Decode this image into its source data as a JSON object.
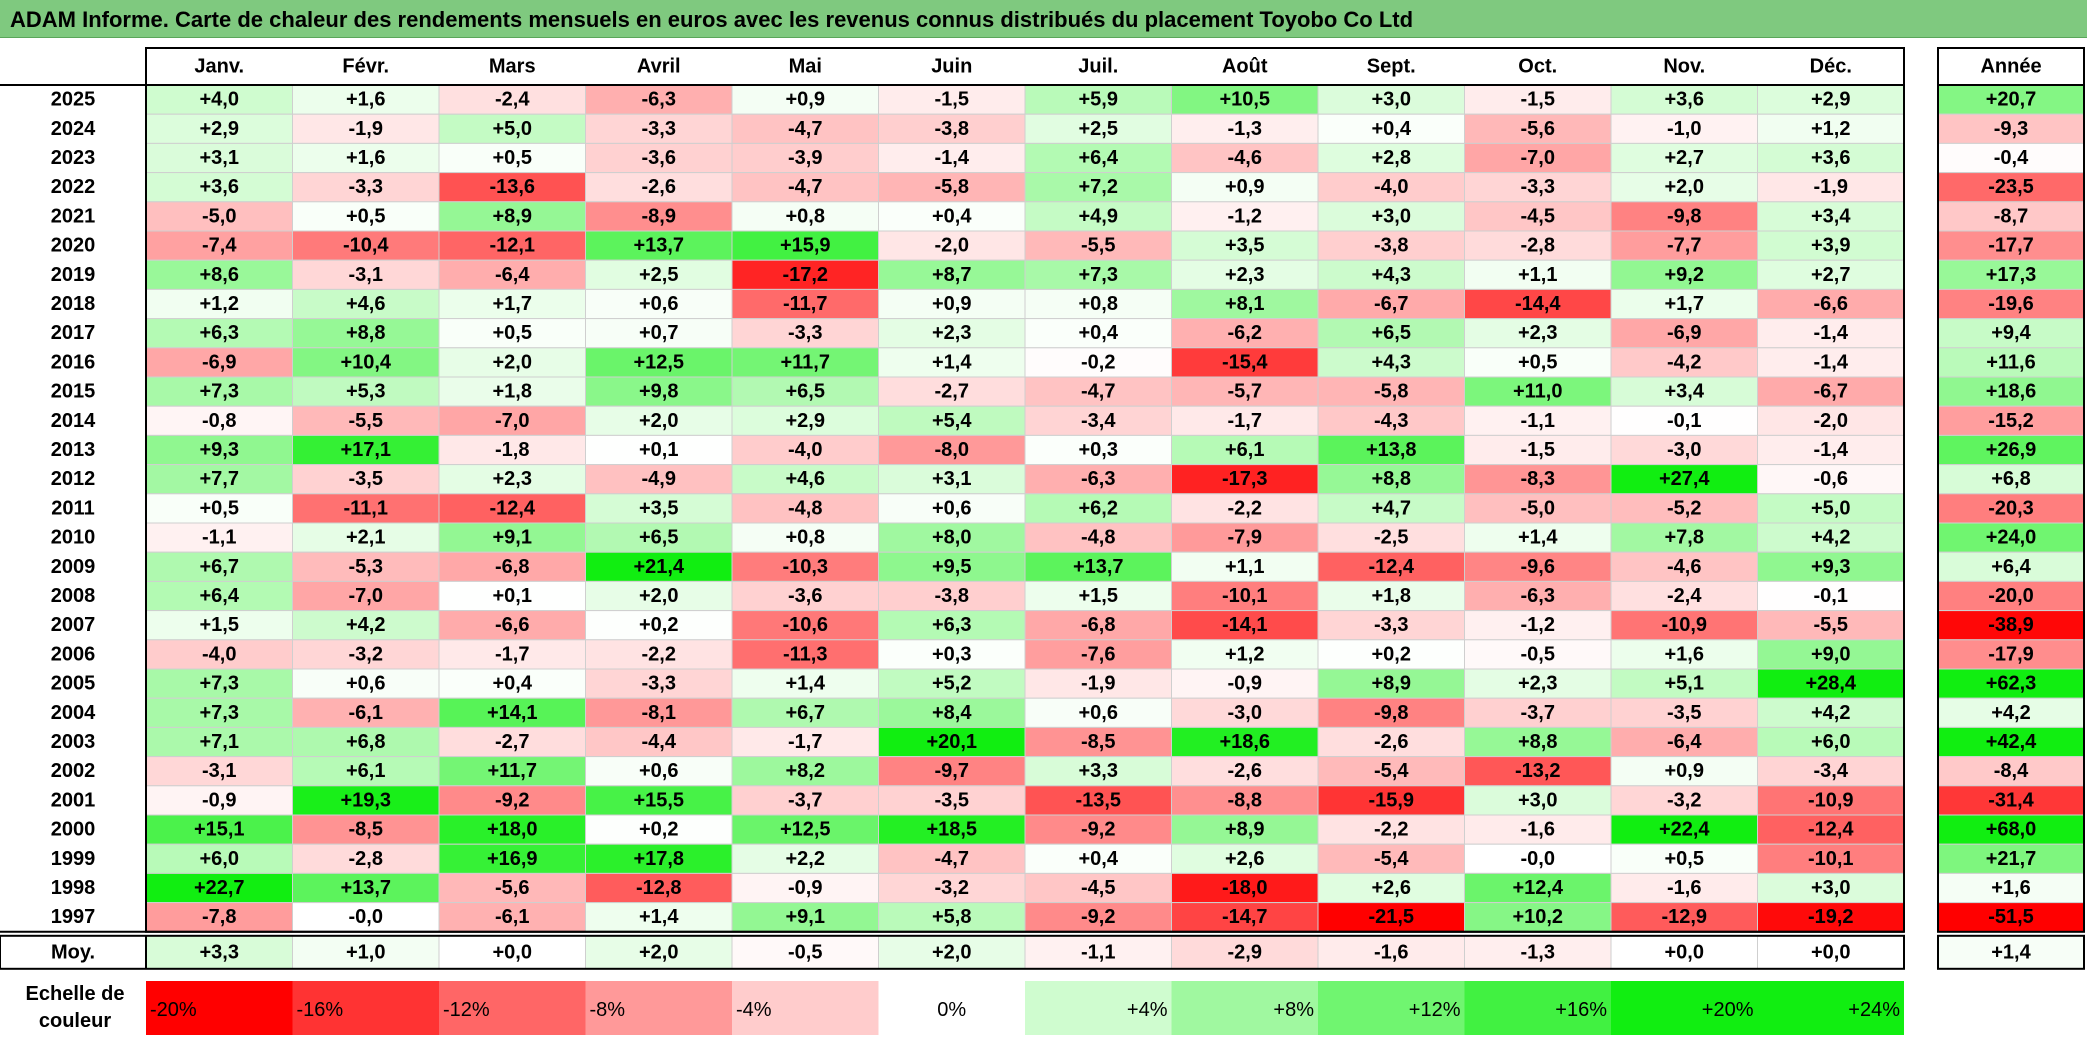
{
  "title": "ADAM Informe. Carte de chaleur des rendements mensuels en euros avec les revenus connus distribués du placement Toyobo Co Ltd",
  "colors": {
    "title_bg": "#7fc97f",
    "max_red": "#ff0000",
    "max_green": "#11ee11",
    "neutral": "#ffffff"
  },
  "chart_data": {
    "type": "heatmap",
    "columns": [
      "Janv.",
      "Févr.",
      "Mars",
      "Avril",
      "Mai",
      "Juin",
      "Juil.",
      "Août",
      "Sept.",
      "Oct.",
      "Nov.",
      "Déc."
    ],
    "year_column": "Année",
    "rows": [
      {
        "year": "2025",
        "values": [
          "+4,0",
          "+1,6",
          "-2,4",
          "-6,3",
          "+0,9",
          "-1,5",
          "+5,9",
          "+10,5",
          "+3,0",
          "-1,5",
          "+3,6",
          "+2,9"
        ],
        "annual": "+20,7"
      },
      {
        "year": "2024",
        "values": [
          "+2,9",
          "-1,9",
          "+5,0",
          "-3,3",
          "-4,7",
          "-3,8",
          "+2,5",
          "-1,3",
          "+0,4",
          "-5,6",
          "-1,0",
          "+1,2"
        ],
        "annual": "-9,3"
      },
      {
        "year": "2023",
        "values": [
          "+3,1",
          "+1,6",
          "+0,5",
          "-3,6",
          "-3,9",
          "-1,4",
          "+6,4",
          "-4,6",
          "+2,8",
          "-7,0",
          "+2,7",
          "+3,6"
        ],
        "annual": "-0,4"
      },
      {
        "year": "2022",
        "values": [
          "+3,6",
          "-3,3",
          "-13,6",
          "-2,6",
          "-4,7",
          "-5,8",
          "+7,2",
          "+0,9",
          "-4,0",
          "-3,3",
          "+2,0",
          "-1,9"
        ],
        "annual": "-23,5"
      },
      {
        "year": "2021",
        "values": [
          "-5,0",
          "+0,5",
          "+8,9",
          "-8,9",
          "+0,8",
          "+0,4",
          "+4,9",
          "-1,2",
          "+3,0",
          "-4,5",
          "-9,8",
          "+3,4"
        ],
        "annual": "-8,7"
      },
      {
        "year": "2020",
        "values": [
          "-7,4",
          "-10,4",
          "-12,1",
          "+13,7",
          "+15,9",
          "-2,0",
          "-5,5",
          "+3,5",
          "-3,8",
          "-2,8",
          "-7,7",
          "+3,9"
        ],
        "annual": "-17,7"
      },
      {
        "year": "2019",
        "values": [
          "+8,6",
          "-3,1",
          "-6,4",
          "+2,5",
          "-17,2",
          "+8,7",
          "+7,3",
          "+2,3",
          "+4,3",
          "+1,1",
          "+9,2",
          "+2,7"
        ],
        "annual": "+17,3"
      },
      {
        "year": "2018",
        "values": [
          "+1,2",
          "+4,6",
          "+1,7",
          "+0,6",
          "-11,7",
          "+0,9",
          "+0,8",
          "+8,1",
          "-6,7",
          "-14,4",
          "+1,7",
          "-6,6"
        ],
        "annual": "-19,6"
      },
      {
        "year": "2017",
        "values": [
          "+6,3",
          "+8,8",
          "+0,5",
          "+0,7",
          "-3,3",
          "+2,3",
          "+0,4",
          "-6,2",
          "+6,5",
          "+2,3",
          "-6,9",
          "-1,4"
        ],
        "annual": "+9,4"
      },
      {
        "year": "2016",
        "values": [
          "-6,9",
          "+10,4",
          "+2,0",
          "+12,5",
          "+11,7",
          "+1,4",
          "-0,2",
          "-15,4",
          "+4,3",
          "+0,5",
          "-4,2",
          "-1,4"
        ],
        "annual": "+11,6"
      },
      {
        "year": "2015",
        "values": [
          "+7,3",
          "+5,3",
          "+1,8",
          "+9,8",
          "+6,5",
          "-2,7",
          "-4,7",
          "-5,7",
          "-5,8",
          "+11,0",
          "+3,4",
          "-6,7"
        ],
        "annual": "+18,6"
      },
      {
        "year": "2014",
        "values": [
          "-0,8",
          "-5,5",
          "-7,0",
          "+2,0",
          "+2,9",
          "+5,4",
          "-3,4",
          "-1,7",
          "-4,3",
          "-1,1",
          "-0,1",
          "-2,0"
        ],
        "annual": "-15,2"
      },
      {
        "year": "2013",
        "values": [
          "+9,3",
          "+17,1",
          "-1,8",
          "+0,1",
          "-4,0",
          "-8,0",
          "+0,3",
          "+6,1",
          "+13,8",
          "-1,5",
          "-3,0",
          "-1,4"
        ],
        "annual": "+26,9"
      },
      {
        "year": "2012",
        "values": [
          "+7,7",
          "-3,5",
          "+2,3",
          "-4,9",
          "+4,6",
          "+3,1",
          "-6,3",
          "-17,3",
          "+8,8",
          "-8,3",
          "+27,4",
          "-0,6"
        ],
        "annual": "+6,8"
      },
      {
        "year": "2011",
        "values": [
          "+0,5",
          "-11,1",
          "-12,4",
          "+3,5",
          "-4,8",
          "+0,6",
          "+6,2",
          "-2,2",
          "+4,7",
          "-5,0",
          "-5,2",
          "+5,0"
        ],
        "annual": "-20,3"
      },
      {
        "year": "2010",
        "values": [
          "-1,1",
          "+2,1",
          "+9,1",
          "+6,5",
          "+0,8",
          "+8,0",
          "-4,8",
          "-7,9",
          "-2,5",
          "+1,4",
          "+7,8",
          "+4,2"
        ],
        "annual": "+24,0"
      },
      {
        "year": "2009",
        "values": [
          "+6,7",
          "-5,3",
          "-6,8",
          "+21,4",
          "-10,3",
          "+9,5",
          "+13,7",
          "+1,1",
          "-12,4",
          "-9,6",
          "-4,6",
          "+9,3"
        ],
        "annual": "+6,4"
      },
      {
        "year": "2008",
        "values": [
          "+6,4",
          "-7,0",
          "+0,1",
          "+2,0",
          "-3,6",
          "-3,8",
          "+1,5",
          "-10,1",
          "+1,8",
          "-6,3",
          "-2,4",
          "-0,1"
        ],
        "annual": "-20,0"
      },
      {
        "year": "2007",
        "values": [
          "+1,5",
          "+4,2",
          "-6,6",
          "+0,2",
          "-10,6",
          "+6,3",
          "-6,8",
          "-14,1",
          "-3,3",
          "-1,2",
          "-10,9",
          "-5,5"
        ],
        "annual": "-38,9"
      },
      {
        "year": "2006",
        "values": [
          "-4,0",
          "-3,2",
          "-1,7",
          "-2,2",
          "-11,3",
          "+0,3",
          "-7,6",
          "+1,2",
          "+0,2",
          "-0,5",
          "+1,6",
          "+9,0"
        ],
        "annual": "-17,9"
      },
      {
        "year": "2005",
        "values": [
          "+7,3",
          "+0,6",
          "+0,4",
          "-3,3",
          "+1,4",
          "+5,2",
          "-1,9",
          "-0,9",
          "+8,9",
          "+2,3",
          "+5,1",
          "+28,4"
        ],
        "annual": "+62,3"
      },
      {
        "year": "2004",
        "values": [
          "+7,3",
          "-6,1",
          "+14,1",
          "-8,1",
          "+6,7",
          "+8,4",
          "+0,6",
          "-3,0",
          "-9,8",
          "-3,7",
          "-3,5",
          "+4,2"
        ],
        "annual": "+4,2"
      },
      {
        "year": "2003",
        "values": [
          "+7,1",
          "+6,8",
          "-2,7",
          "-4,4",
          "-1,7",
          "+20,1",
          "-8,5",
          "+18,6",
          "-2,6",
          "+8,8",
          "-6,4",
          "+6,0"
        ],
        "annual": "+42,4"
      },
      {
        "year": "2002",
        "values": [
          "-3,1",
          "+6,1",
          "+11,7",
          "+0,6",
          "+8,2",
          "-9,7",
          "+3,3",
          "-2,6",
          "-5,4",
          "-13,2",
          "+0,9",
          "-3,4"
        ],
        "annual": "-8,4"
      },
      {
        "year": "2001",
        "values": [
          "-0,9",
          "+19,3",
          "-9,2",
          "+15,5",
          "-3,7",
          "-3,5",
          "-13,5",
          "-8,8",
          "-15,9",
          "+3,0",
          "-3,2",
          "-10,9"
        ],
        "annual": "-31,4"
      },
      {
        "year": "2000",
        "values": [
          "+15,1",
          "-8,5",
          "+18,0",
          "+0,2",
          "+12,5",
          "+18,5",
          "-9,2",
          "+8,9",
          "-2,2",
          "-1,6",
          "+22,4",
          "-12,4"
        ],
        "annual": "+68,0"
      },
      {
        "year": "1999",
        "values": [
          "+6,0",
          "-2,8",
          "+16,9",
          "+17,8",
          "+2,2",
          "-4,7",
          "+0,4",
          "+2,6",
          "-5,4",
          "-0,0",
          "+0,5",
          "-10,1"
        ],
        "annual": "+21,7"
      },
      {
        "year": "1998",
        "values": [
          "+22,7",
          "+13,7",
          "-5,6",
          "-12,8",
          "-0,9",
          "-3,2",
          "-4,5",
          "-18,0",
          "+2,6",
          "+12,4",
          "-1,6",
          "+3,0"
        ],
        "annual": "+1,6"
      },
      {
        "year": "1997",
        "values": [
          "-7,8",
          "-0,0",
          "-6,1",
          "+1,4",
          "+9,1",
          "+5,8",
          "-9,2",
          "-14,7",
          "-21,5",
          "+10,2",
          "-12,9",
          "-19,2"
        ],
        "annual": "-51,5"
      }
    ],
    "average": {
      "label": "Moy.",
      "values": [
        "+3,3",
        "+1,0",
        "+0,0",
        "+2,0",
        "-0,5",
        "+2,0",
        "-1,1",
        "-2,9",
        "-1,6",
        "-1,3",
        "+0,0",
        "+0,0"
      ],
      "annual": "+1,4"
    },
    "color_scale": {
      "label_line1": "Echelle de",
      "label_line2": "couleur",
      "stops": [
        "-20%",
        "-16%",
        "-12%",
        "-8%",
        "-4%",
        "0%",
        "+4%",
        "+8%",
        "+12%",
        "+16%",
        "+20%",
        "+24%"
      ]
    }
  }
}
